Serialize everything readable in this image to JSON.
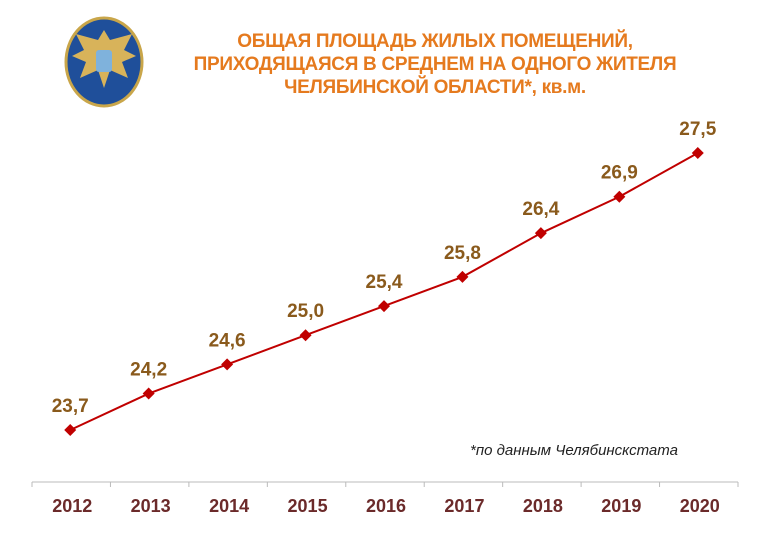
{
  "logo": {
    "name": "emblem-logo",
    "text": ""
  },
  "chart_data": {
    "type": "line",
    "title": [
      "ОБЩАЯ ПЛОЩАДЬ ЖИЛЫХ ПОМЕЩЕНИЙ,",
      "ПРИХОДЯЩАЯСЯ В СРЕДНЕМ НА ОДНОГО ЖИТЕЛЯ",
      "ЧЕЛЯБИНСКОЙ ОБЛАСТИ*, кв.м."
    ],
    "categories": [
      "2012",
      "2013",
      "2014",
      "2015",
      "2016",
      "2017",
      "2018",
      "2019",
      "2020"
    ],
    "values": [
      23.7,
      24.2,
      24.6,
      25.0,
      25.4,
      25.8,
      26.4,
      26.9,
      27.5
    ],
    "data_labels": [
      "23,7",
      "24,2",
      "24,6",
      "25,0",
      "25,4",
      "25,8",
      "26,4",
      "26,9",
      "27,5"
    ],
    "annotation": "*по данным Челябинскстата",
    "grid": false,
    "colors": {
      "line": "#c00000",
      "title": "#e57a1e",
      "labels": "#8a5a1c",
      "ticks": "#6b2a2a"
    }
  }
}
